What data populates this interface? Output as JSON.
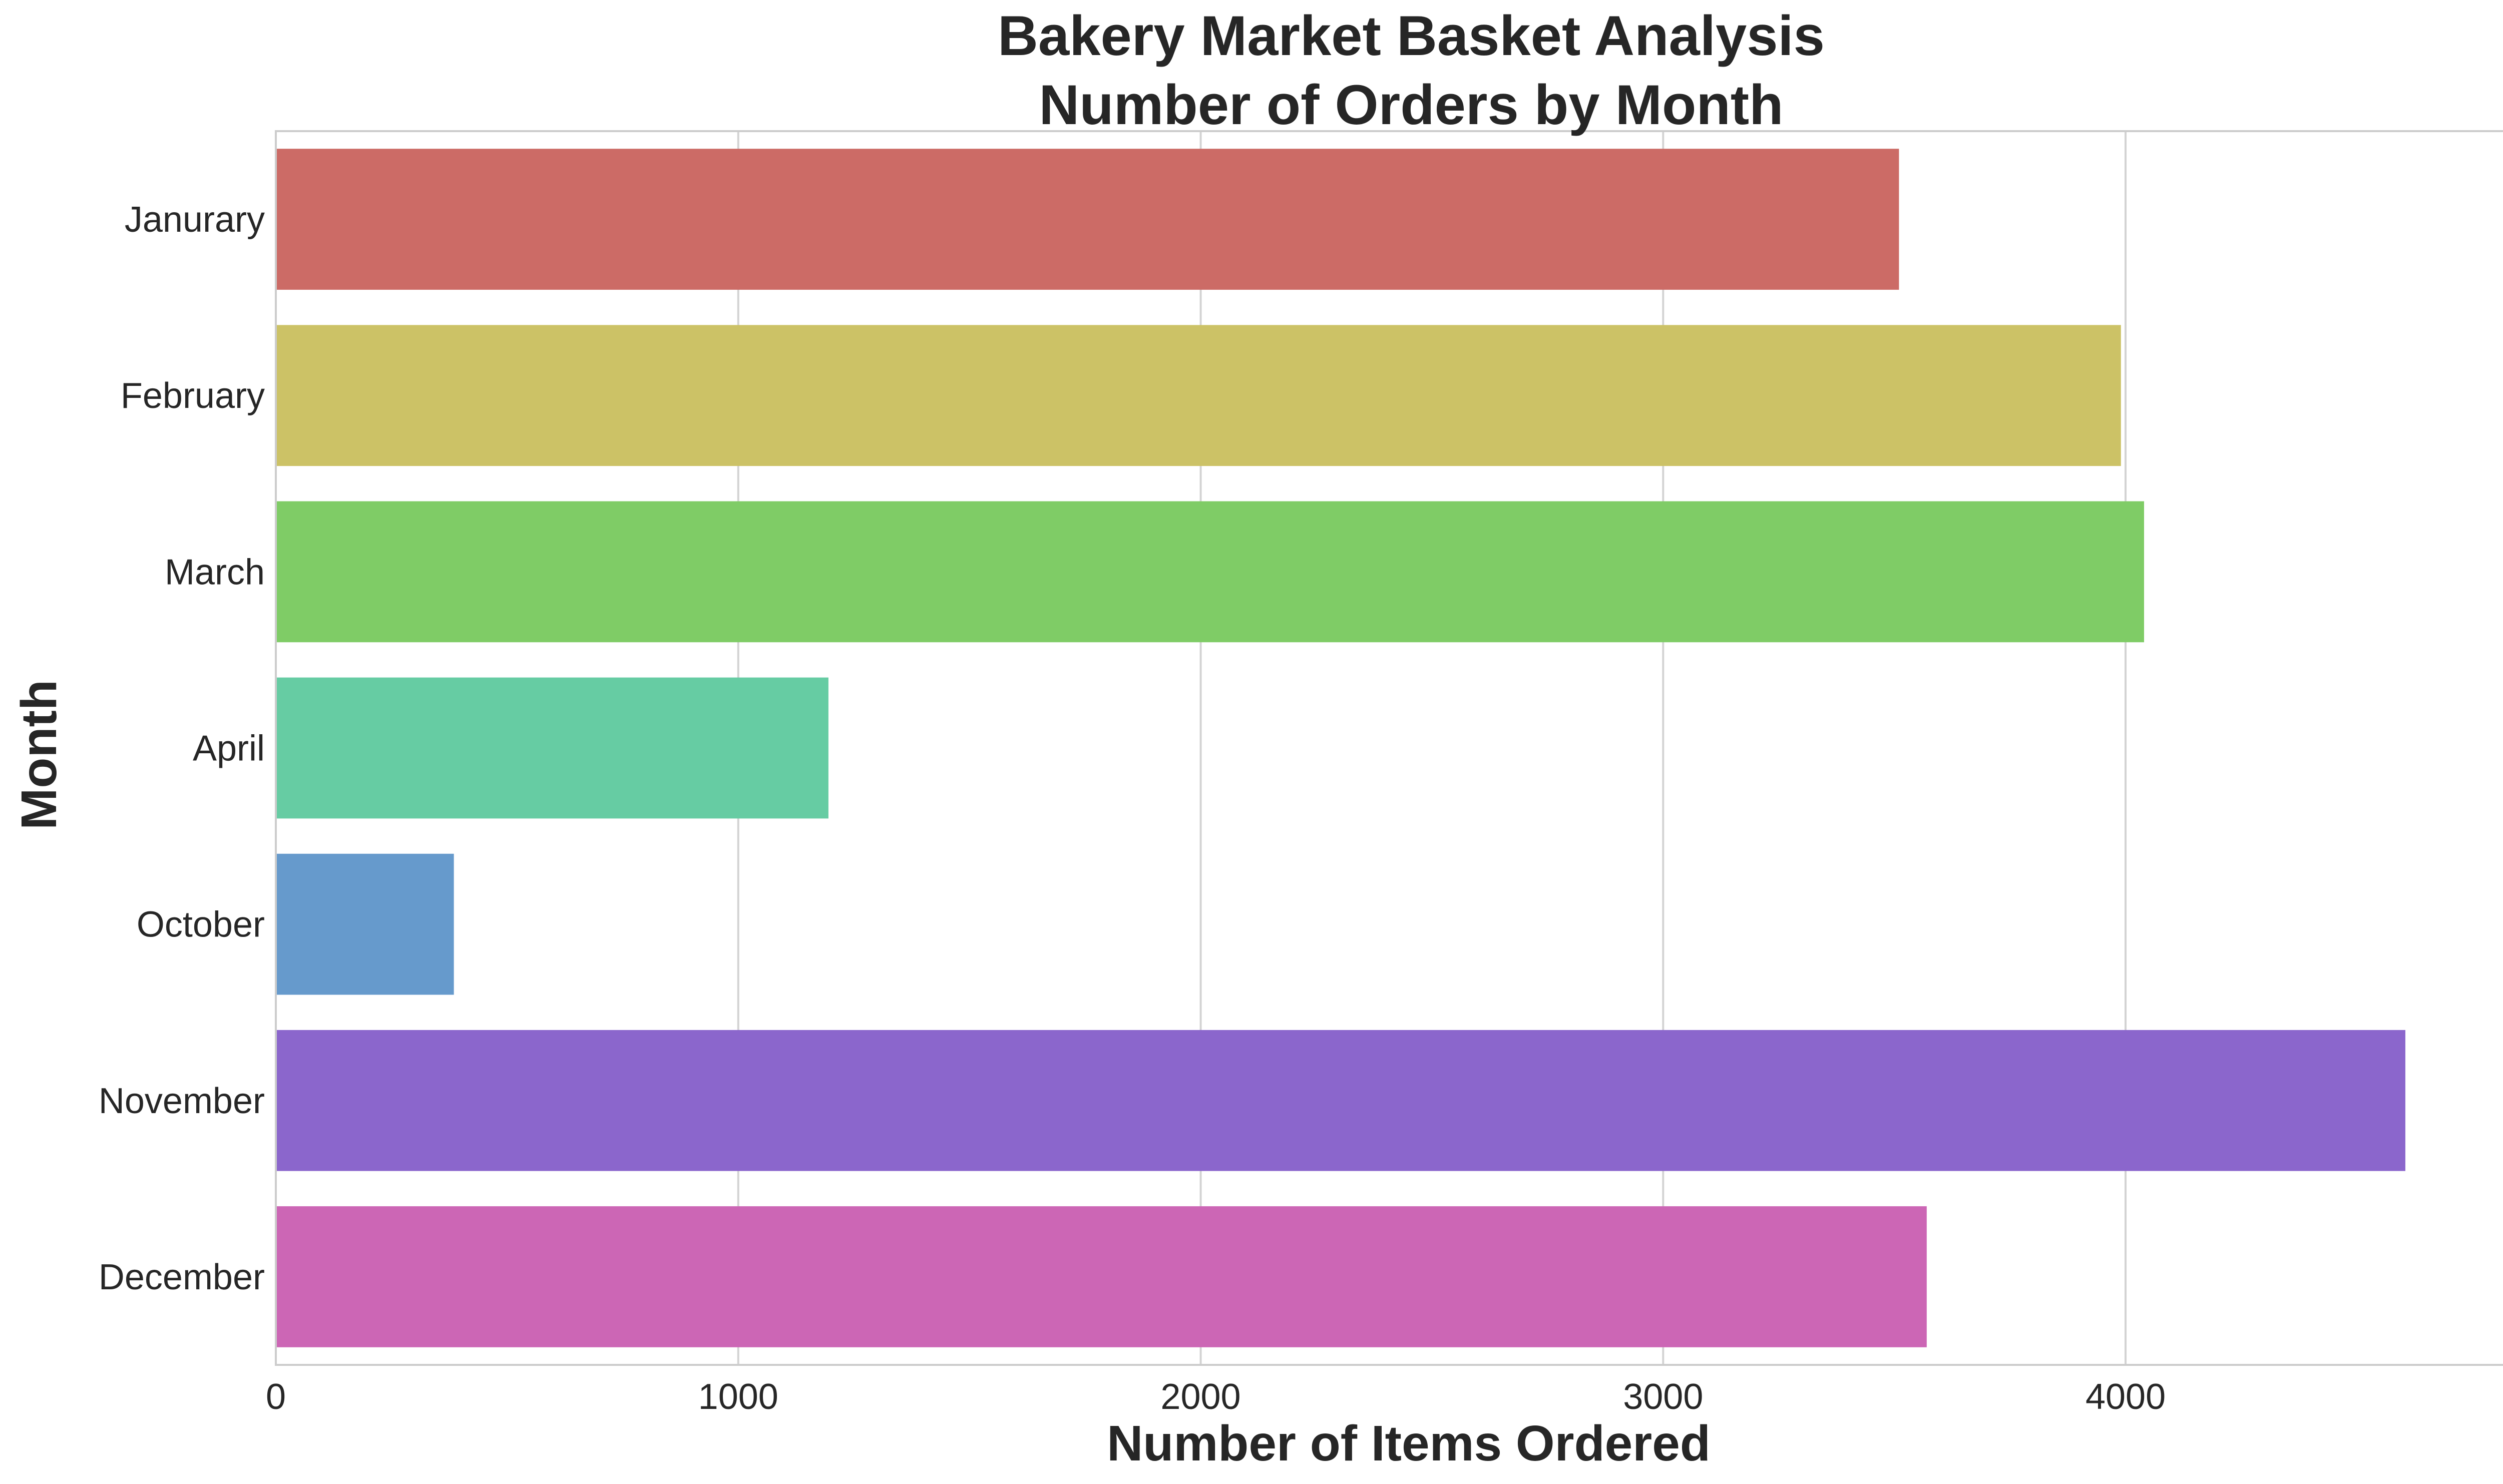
{
  "chart_data": {
    "type": "bar",
    "orientation": "horizontal",
    "title": "Bakery Market Basket Analysis",
    "subtitle": "Number of Orders by Month",
    "xlabel": "Number of Items Ordered",
    "ylabel": "Month",
    "categories": [
      "Janurary",
      "February",
      "March",
      "April",
      "October",
      "November",
      "December"
    ],
    "values": [
      3510,
      3990,
      4040,
      1195,
      385,
      4605,
      3570
    ],
    "colors": [
      "#cc6b66",
      "#ccc266",
      "#7fcc66",
      "#66cca3",
      "#669acc",
      "#8b66cc",
      "#cc66b5"
    ],
    "xlim": [
      0,
      4840
    ],
    "xticks": [
      0,
      1000,
      2000,
      3000,
      4000
    ],
    "xtick_labels": [
      "0",
      "1000",
      "2000",
      "3000",
      "4000"
    ],
    "grid": true,
    "grid_axis": "x",
    "legend": "none"
  }
}
